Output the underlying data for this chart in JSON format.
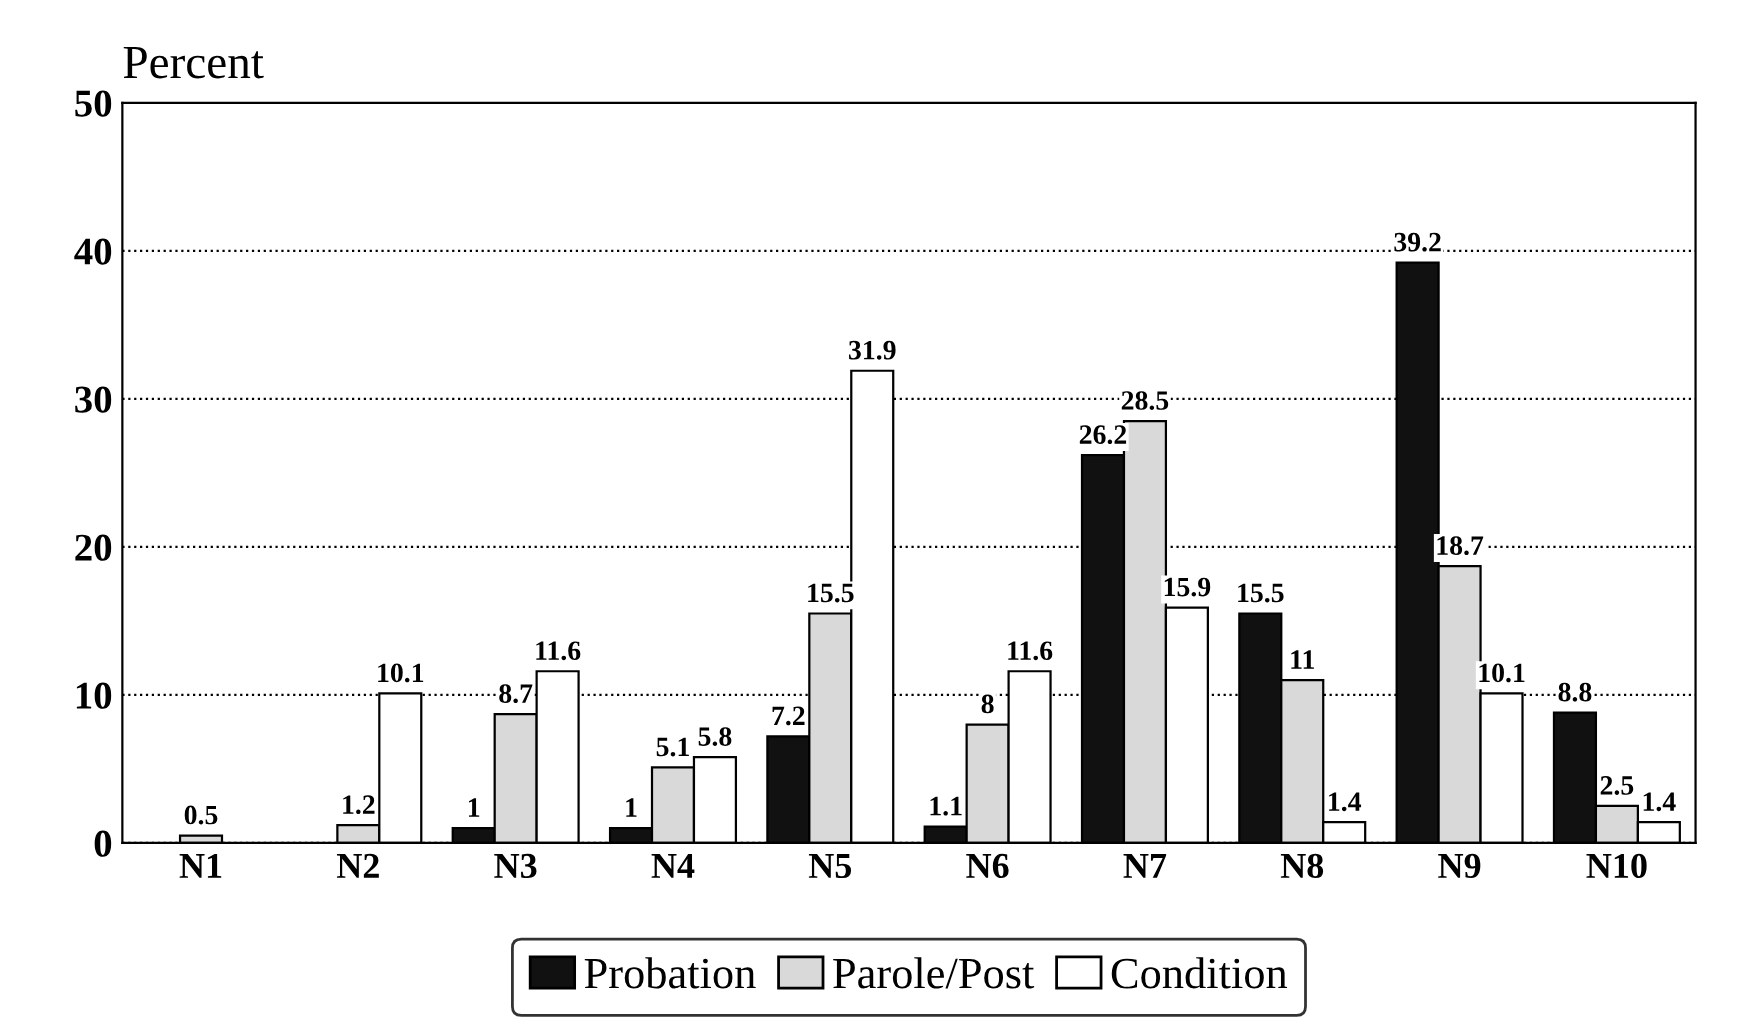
{
  "chart_data": {
    "type": "bar",
    "ylabel": "Percent",
    "categories": [
      "N1",
      "N2",
      "N3",
      "N4",
      "N5",
      "N6",
      "N7",
      "N8",
      "N9",
      "N10"
    ],
    "series": [
      {
        "name": "Probation",
        "color": "#111111",
        "values": [
          null,
          null,
          1,
          1,
          7.2,
          1.1,
          26.2,
          15.5,
          39.2,
          8.8
        ]
      },
      {
        "name": "Parole/Post",
        "color": "#d9d9d9",
        "values": [
          0.5,
          1.2,
          8.7,
          5.1,
          15.5,
          8,
          28.5,
          11,
          18.7,
          2.5
        ]
      },
      {
        "name": "Condition",
        "color": "#ffffff",
        "values": [
          null,
          10.1,
          11.6,
          5.8,
          31.9,
          11.6,
          15.9,
          1.4,
          10.1,
          1.4
        ]
      }
    ],
    "ylim": [
      0,
      50
    ],
    "yticks": [
      0,
      10,
      20,
      30,
      40,
      50
    ],
    "grid": "y",
    "legend": "bottom",
    "data_labels": true
  }
}
